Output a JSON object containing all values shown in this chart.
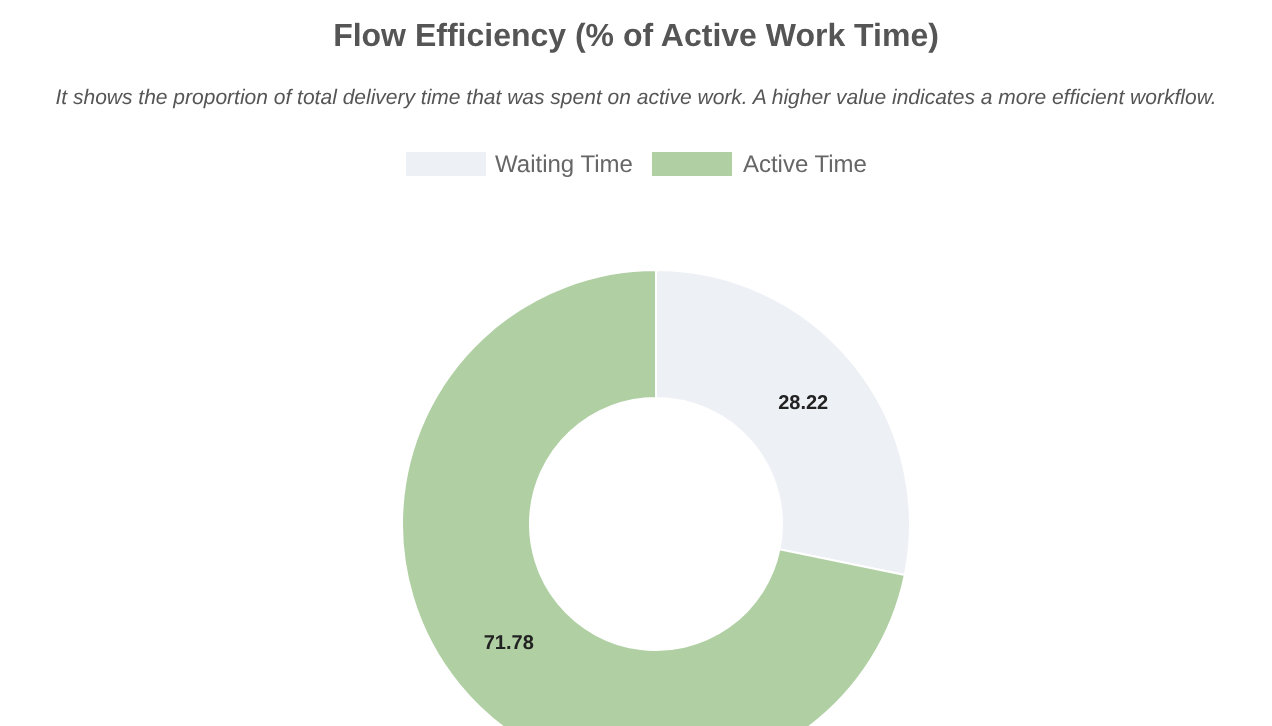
{
  "chart_data": {
    "type": "donut",
    "title": "Flow Efficiency (% of Active Work Time)",
    "subtitle": "It shows the proportion of total delivery time that was spent on active work. A higher value indicates a more efficient workflow.",
    "categories": [
      "Waiting Time",
      "Active Time"
    ],
    "values": [
      28.22,
      71.78
    ],
    "colors": [
      "#edf0f5",
      "#b0d0a4"
    ],
    "legend": "top",
    "data_labels": true
  }
}
